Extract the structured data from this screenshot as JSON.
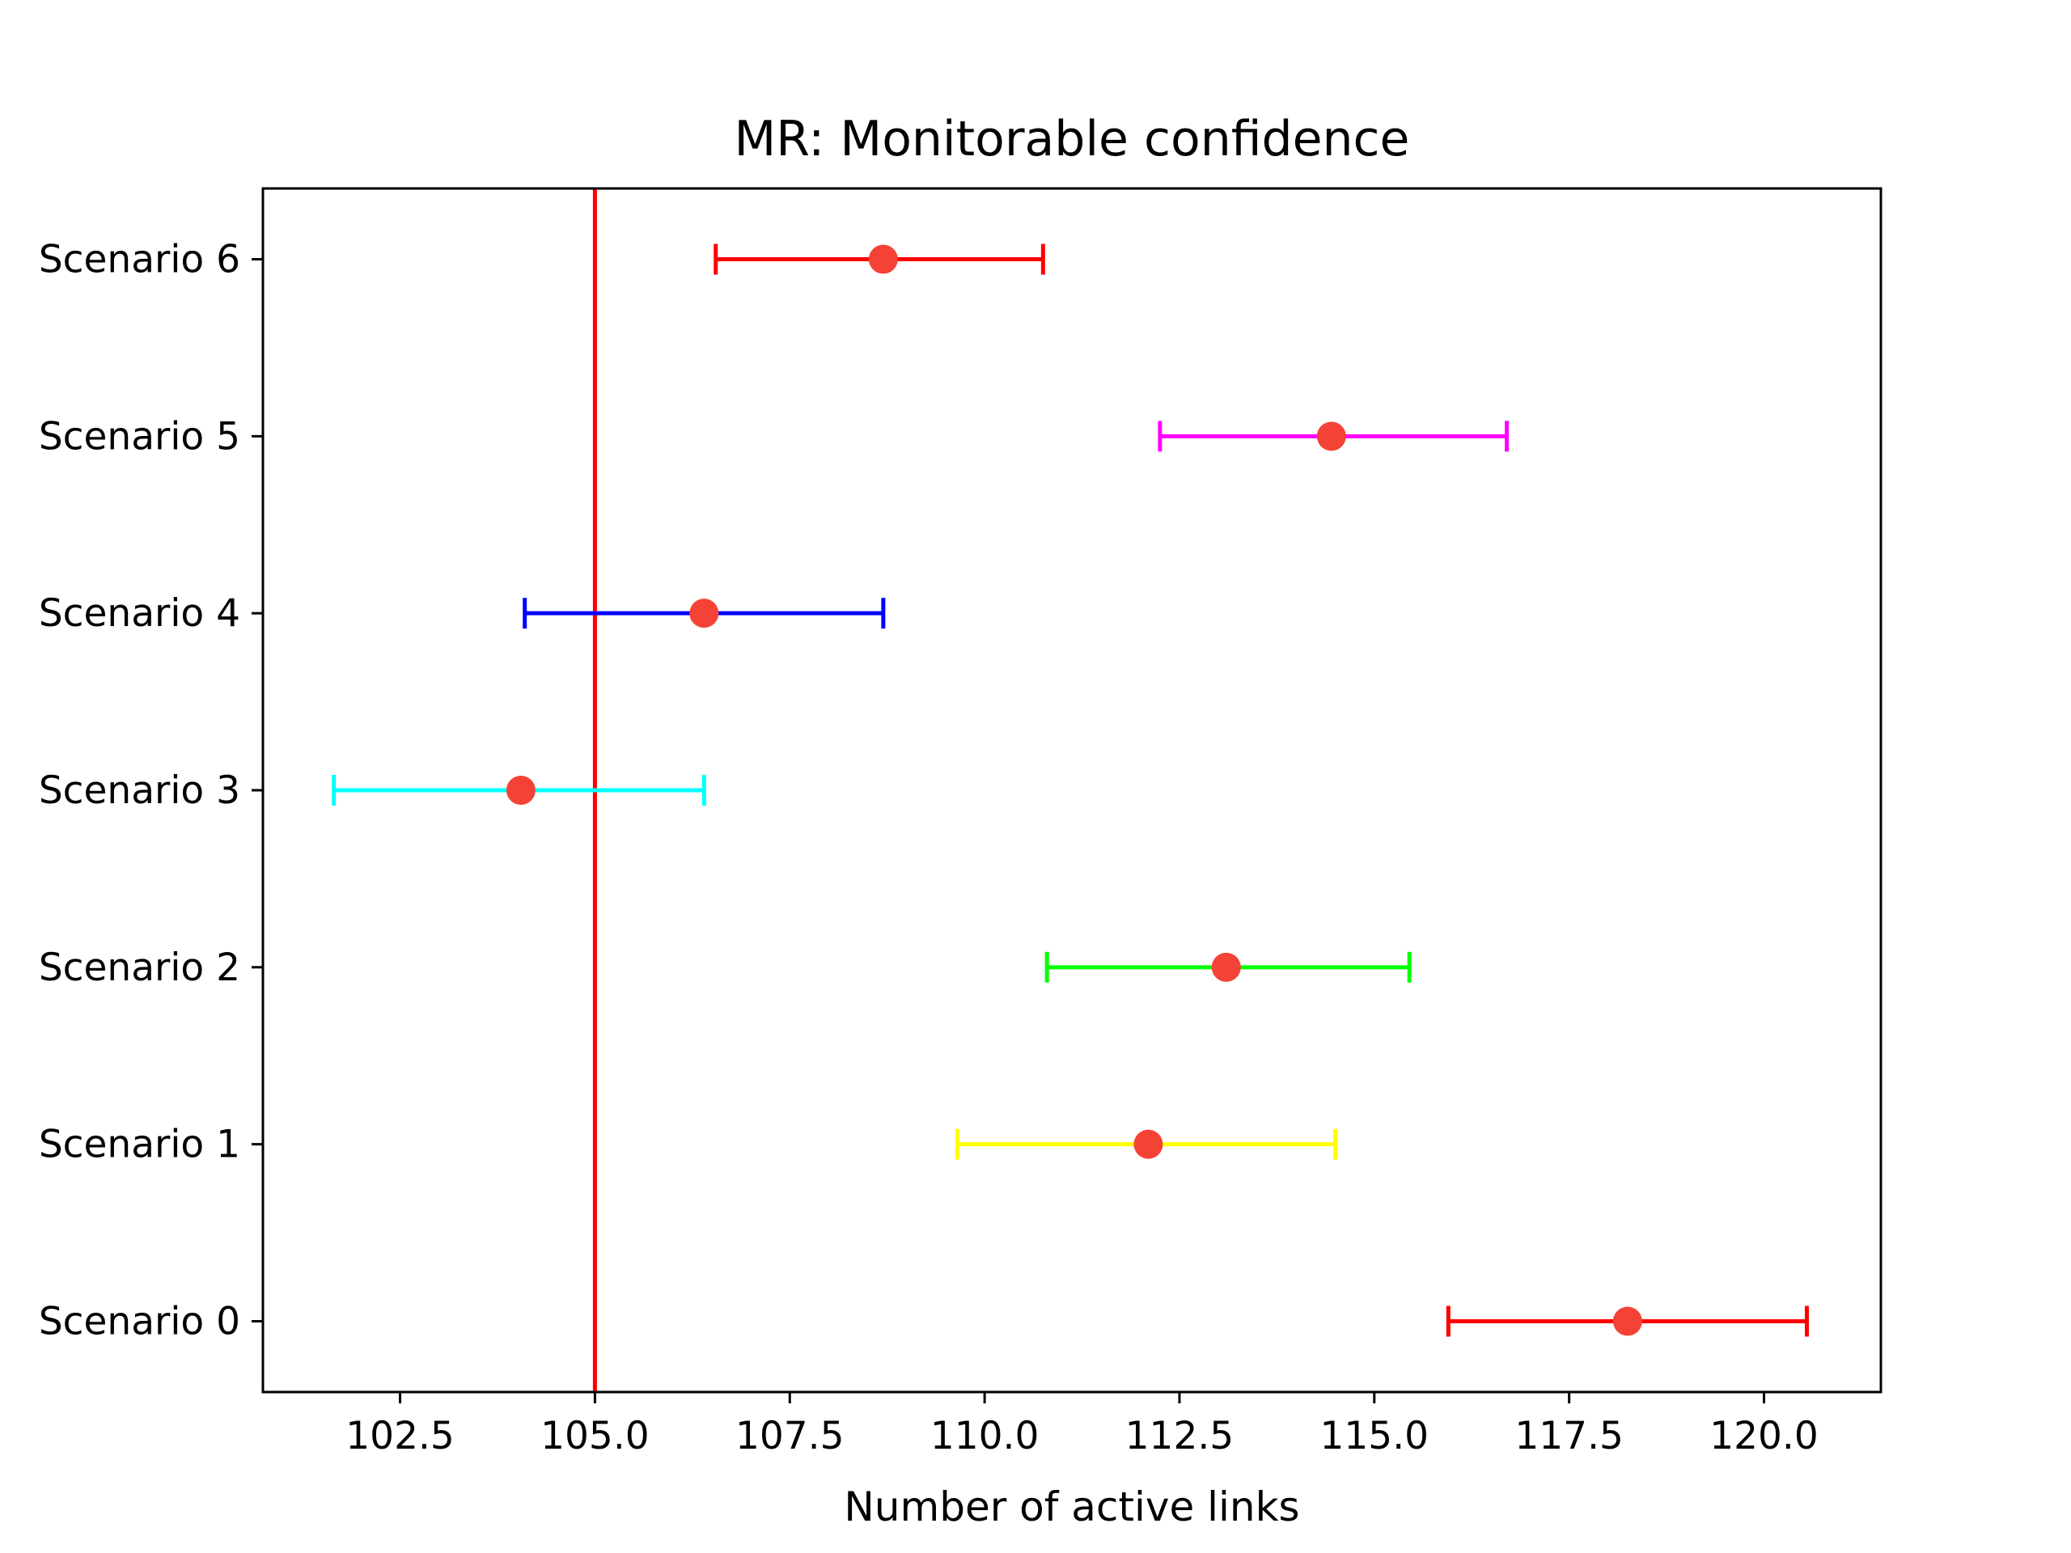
{
  "chart_data": {
    "type": "scatter",
    "title": "MR: Monitorable confidence",
    "xlabel": "Number of active links",
    "ylabel": "",
    "xlim": [
      100.74,
      121.5
    ],
    "ylim": [
      -0.4,
      6.4
    ],
    "x_ticks": [
      102.5,
      105.0,
      107.5,
      110.0,
      112.5,
      115.0,
      117.5,
      120.0
    ],
    "x_tick_labels": [
      "102.5",
      "105.0",
      "107.5",
      "110.0",
      "112.5",
      "115.0",
      "117.5",
      "120.0"
    ],
    "grid": false,
    "reference_line": {
      "x": 105.0,
      "color": "#ff0000"
    },
    "marker_color": "#f44336",
    "series": [
      {
        "label": "Scenario 0",
        "y": 0,
        "x": 118.25,
        "low": 115.95,
        "high": 120.55,
        "color": "#ff0000"
      },
      {
        "label": "Scenario 1",
        "y": 1,
        "x": 112.1,
        "low": 109.65,
        "high": 114.5,
        "color": "#ffff00"
      },
      {
        "label": "Scenario 2",
        "y": 2,
        "x": 113.1,
        "low": 110.8,
        "high": 115.45,
        "color": "#00ff00"
      },
      {
        "label": "Scenario 3",
        "y": 3,
        "x": 104.05,
        "low": 101.65,
        "high": 106.4,
        "color": "#00ffff"
      },
      {
        "label": "Scenario 4",
        "y": 4,
        "x": 106.4,
        "low": 104.1,
        "high": 108.7,
        "color": "#0000ff"
      },
      {
        "label": "Scenario 5",
        "y": 5,
        "x": 114.45,
        "low": 112.25,
        "high": 116.7,
        "color": "#ff00ff"
      },
      {
        "label": "Scenario 6",
        "y": 6,
        "x": 108.7,
        "low": 106.55,
        "high": 110.75,
        "color": "#ff0000"
      }
    ]
  }
}
